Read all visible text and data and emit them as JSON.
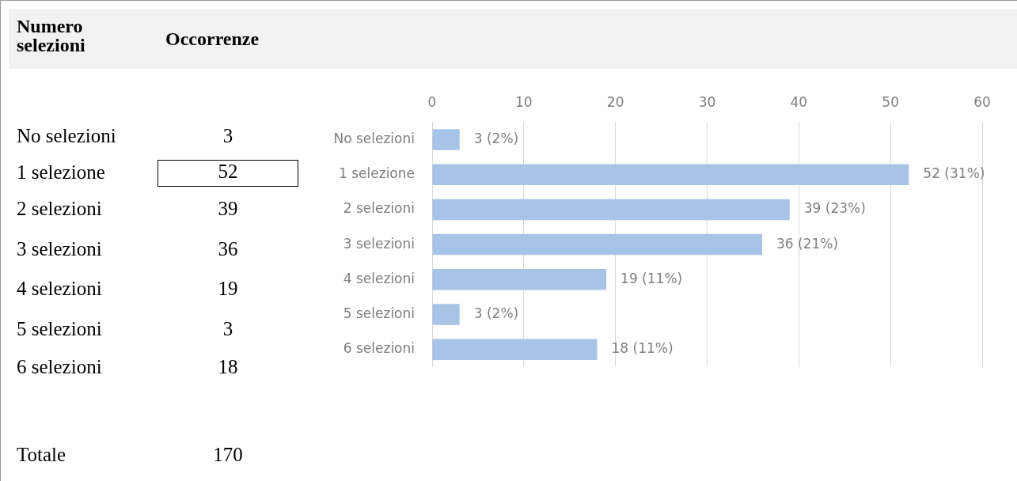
{
  "chart_data": [
    {
      "type": "other",
      "annotations": [
        "Numero selezioni",
        "Occorrenze",
        "No selezioni",
        "3",
        "1 selezione",
        "52",
        "2 selezioni",
        "39",
        "3 selezioni",
        "36",
        "4 selezioni",
        "19",
        "5 selezioni",
        "3",
        "6 selezioni",
        "18",
        "Totale",
        "170"
      ]
    },
    {
      "type": "bar",
      "orientation": "horizontal",
      "categories": [
        "No selezioni",
        "1 selezione",
        "2 selezioni",
        "3 selezioni",
        "4 selezioni",
        "5 selezioni",
        "6 selezioni"
      ],
      "values": [
        3,
        52,
        39,
        36,
        19,
        3,
        18
      ],
      "value_labels": [
        "3 (2%)",
        "52 (31%)",
        "39 (23%)",
        "36 (21%)",
        "19 (11%)",
        "3 (2%)",
        "18 (11%)"
      ],
      "color": "#a7c3e6",
      "xlim": [
        0,
        60
      ],
      "xticks": [
        0,
        10,
        20,
        30,
        40,
        50,
        60
      ],
      "grid": "x"
    }
  ]
}
